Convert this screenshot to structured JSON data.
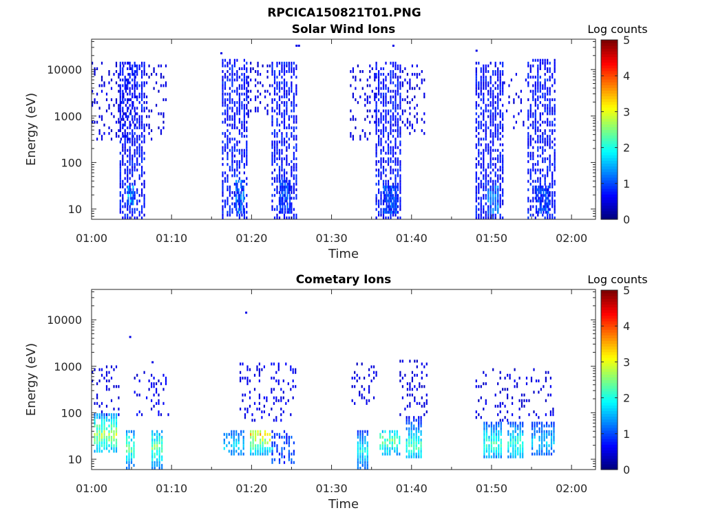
{
  "figure_title": "RPCICA150821T01.PNG",
  "chart_data": [
    {
      "type": "heatmap",
      "title": "Solar Wind Ions",
      "xlabel": "Time",
      "ylabel": "Energy (eV)",
      "x_ticks": [
        "01:00",
        "01:10",
        "01:20",
        "01:30",
        "01:40",
        "01:50",
        "02:00"
      ],
      "x_range_minutes": [
        0,
        63
      ],
      "y_scale": "log",
      "y_ticks": [
        10,
        100,
        1000,
        10000
      ],
      "y_tick_labels": [
        "10",
        "100",
        "1000",
        "10000"
      ],
      "y_range": [
        6,
        45000
      ],
      "colorbar": {
        "label": "Log counts",
        "range": [
          0,
          5
        ],
        "ticks": [
          "0",
          "1",
          "2",
          "3",
          "4",
          "5"
        ],
        "colormap": "jet"
      },
      "bursts": [
        {
          "t_start": 0,
          "t_end": 5.5,
          "e_low": 300,
          "e_high": 15000,
          "density": 0.25,
          "peak_log": 0.6
        },
        {
          "t_start": 3.5,
          "t_end": 6.5,
          "e_low": 6,
          "e_high": 15000,
          "density": 0.6,
          "peak_log": 0.9
        },
        {
          "t_start": 4.5,
          "t_end": 5.3,
          "e_low": 12,
          "e_high": 30,
          "density": 0.9,
          "peak_log": 1.9
        },
        {
          "t_start": 6.5,
          "t_end": 9.5,
          "e_low": 300,
          "e_high": 12000,
          "density": 0.2,
          "peak_log": 0.6
        },
        {
          "t_start": 16.3,
          "t_end": 19.5,
          "e_low": 6,
          "e_high": 18000,
          "density": 0.55,
          "peak_log": 0.9
        },
        {
          "t_start": 18.0,
          "t_end": 19.2,
          "e_low": 8,
          "e_high": 40,
          "density": 0.9,
          "peak_log": 1.5
        },
        {
          "t_start": 19.5,
          "t_end": 22.5,
          "e_low": 800,
          "e_high": 15000,
          "density": 0.2,
          "peak_log": 0.6
        },
        {
          "t_start": 22.5,
          "t_end": 25.8,
          "e_low": 6,
          "e_high": 15000,
          "density": 0.55,
          "peak_log": 0.9
        },
        {
          "t_start": 23.5,
          "t_end": 25.0,
          "e_low": 8,
          "e_high": 40,
          "density": 0.85,
          "peak_log": 1.3
        },
        {
          "t_start": 32.3,
          "t_end": 35.5,
          "e_low": 300,
          "e_high": 12000,
          "density": 0.22,
          "peak_log": 0.6
        },
        {
          "t_start": 35.5,
          "t_end": 38.5,
          "e_low": 6,
          "e_high": 15000,
          "density": 0.6,
          "peak_log": 0.9
        },
        {
          "t_start": 36.5,
          "t_end": 38.0,
          "e_low": 8,
          "e_high": 30,
          "density": 0.9,
          "peak_log": 1.3
        },
        {
          "t_start": 38.5,
          "t_end": 41.5,
          "e_low": 400,
          "e_high": 12000,
          "density": 0.2,
          "peak_log": 0.6
        },
        {
          "t_start": 48.0,
          "t_end": 51.5,
          "e_low": 6,
          "e_high": 15000,
          "density": 0.6,
          "peak_log": 0.9
        },
        {
          "t_start": 49.5,
          "t_end": 50.8,
          "e_low": 8,
          "e_high": 30,
          "density": 0.9,
          "peak_log": 1.6
        },
        {
          "t_start": 51.5,
          "t_end": 54.5,
          "e_low": 500,
          "e_high": 8000,
          "density": 0.15,
          "peak_log": 0.6
        },
        {
          "t_start": 54.5,
          "t_end": 57.8,
          "e_low": 6,
          "e_high": 16000,
          "density": 0.55,
          "peak_log": 0.9
        },
        {
          "t_start": 55.5,
          "t_end": 57.0,
          "e_low": 8,
          "e_high": 30,
          "density": 0.8,
          "peak_log": 1.2
        }
      ],
      "isolated_points": [
        {
          "t": 25.5,
          "e": 32000,
          "log": 0.5
        },
        {
          "t": 25.8,
          "e": 32000,
          "log": 0.5
        },
        {
          "t": 37.6,
          "e": 32000,
          "log": 0.5
        },
        {
          "t": 48.0,
          "e": 25000,
          "log": 0.5
        },
        {
          "t": 16.1,
          "e": 22000,
          "log": 0.5
        }
      ]
    },
    {
      "type": "heatmap",
      "title": "Cometary Ions",
      "xlabel": "Time",
      "ylabel": "Energy (eV)",
      "x_ticks": [
        "01:00",
        "01:10",
        "01:20",
        "01:30",
        "01:40",
        "01:50",
        "02:00"
      ],
      "x_range_minutes": [
        0,
        63
      ],
      "y_scale": "log",
      "y_ticks": [
        10,
        100,
        1000,
        10000
      ],
      "y_tick_labels": [
        "10",
        "100",
        "1000",
        "10000"
      ],
      "y_range": [
        6,
        45000
      ],
      "colorbar": {
        "label": "Log counts",
        "range": [
          0,
          5
        ],
        "ticks": [
          "0",
          "1",
          "2",
          "3",
          "4",
          "5"
        ],
        "colormap": "jet"
      },
      "bursts": [
        {
          "t_start": 0,
          "t_end": 3.5,
          "e_low": 70,
          "e_high": 1000,
          "density": 0.18,
          "peak_log": 0.6
        },
        {
          "t_start": 0.3,
          "t_end": 3.2,
          "e_low": 14,
          "e_high": 100,
          "density": 0.8,
          "peak_log": 3.2,
          "peak_e": 35
        },
        {
          "t_start": 4.3,
          "t_end": 5.3,
          "e_low": 6,
          "e_high": 40,
          "density": 0.8,
          "peak_log": 2.8,
          "peak_e": 18
        },
        {
          "t_start": 5.3,
          "t_end": 9.8,
          "e_low": 80,
          "e_high": 800,
          "density": 0.2,
          "peak_log": 0.7
        },
        {
          "t_start": 7.5,
          "t_end": 8.8,
          "e_low": 6,
          "e_high": 40,
          "density": 0.85,
          "peak_log": 2.9,
          "peak_e": 18
        },
        {
          "t_start": 16.5,
          "t_end": 19.0,
          "e_low": 12,
          "e_high": 40,
          "density": 0.5,
          "peak_log": 2.0,
          "peak_e": 20
        },
        {
          "t_start": 18.5,
          "t_end": 25.5,
          "e_low": 60,
          "e_high": 1200,
          "density": 0.2,
          "peak_log": 0.7
        },
        {
          "t_start": 19.8,
          "t_end": 22.8,
          "e_low": 12,
          "e_high": 45,
          "density": 0.75,
          "peak_log": 3.7,
          "peak_e": 35
        },
        {
          "t_start": 22.5,
          "t_end": 25.5,
          "e_low": 8,
          "e_high": 40,
          "density": 0.4,
          "peak_log": 1.2
        },
        {
          "t_start": 32.5,
          "t_end": 35.5,
          "e_low": 150,
          "e_high": 1200,
          "density": 0.22,
          "peak_log": 0.6
        },
        {
          "t_start": 33.2,
          "t_end": 34.6,
          "e_low": 6,
          "e_high": 40,
          "density": 0.85,
          "peak_log": 2.3,
          "peak_e": 15
        },
        {
          "t_start": 36.0,
          "t_end": 38.5,
          "e_low": 12,
          "e_high": 40,
          "density": 0.7,
          "peak_log": 2.7,
          "peak_e": 25
        },
        {
          "t_start": 38.5,
          "t_end": 41.8,
          "e_low": 80,
          "e_high": 1300,
          "density": 0.2,
          "peak_log": 0.6
        },
        {
          "t_start": 39.3,
          "t_end": 41.2,
          "e_low": 10,
          "e_high": 80,
          "density": 0.8,
          "peak_log": 2.6,
          "peak_e": 20
        },
        {
          "t_start": 48.0,
          "t_end": 57.8,
          "e_low": 60,
          "e_high": 900,
          "density": 0.15,
          "peak_log": 0.6
        },
        {
          "t_start": 49.0,
          "t_end": 51.3,
          "e_low": 10,
          "e_high": 60,
          "density": 0.8,
          "peak_log": 2.5,
          "peak_e": 22
        },
        {
          "t_start": 52.0,
          "t_end": 54.0,
          "e_low": 10,
          "e_high": 60,
          "density": 0.8,
          "peak_log": 2.5,
          "peak_e": 22
        },
        {
          "t_start": 55.0,
          "t_end": 57.8,
          "e_low": 12,
          "e_high": 60,
          "density": 0.75,
          "peak_log": 1.9,
          "peak_e": 25
        }
      ],
      "isolated_points": [
        {
          "t": 4.7,
          "e": 4200,
          "log": 0.5
        },
        {
          "t": 19.2,
          "e": 14000,
          "log": 0.5
        },
        {
          "t": 7.5,
          "e": 1200,
          "log": 0.5
        }
      ]
    }
  ]
}
